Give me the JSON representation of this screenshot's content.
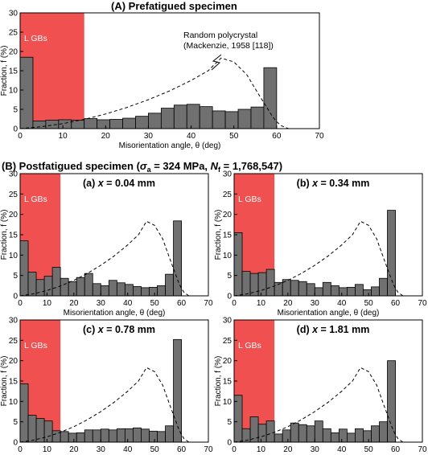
{
  "figure": {
    "panel_a_title": "(A)  Prefatigued specimen",
    "panel_b_title_prefix": "(B)  Postfatigued specimen (",
    "panel_b_sigma": "σ",
    "panel_b_sigma_sub": "a",
    "panel_b_mid": " = 324 MPa, ",
    "panel_b_n": "N",
    "panel_b_n_sub": "f",
    "panel_b_suffix": " = 1,768,547)"
  },
  "colors": {
    "lgb_band": "#f05050",
    "bar_fill": "#707070",
    "bar_stroke": "#000000",
    "curve": "#000000"
  },
  "chart_data": [
    {
      "id": "prefatigued",
      "type": "bar",
      "title": "",
      "xlabel": "Misorientation angle, θ (deg)",
      "ylabel": "Fraction, f (%)",
      "xlim": [
        0,
        70
      ],
      "ylim": [
        0,
        30
      ],
      "xticks": [
        0,
        10,
        20,
        30,
        40,
        50,
        60,
        70
      ],
      "yticks": [
        0,
        5,
        10,
        15,
        20,
        25,
        30
      ],
      "bin_width": 3,
      "lgb_range": [
        0,
        15
      ],
      "lgb_label": "L GBs",
      "annotation": [
        "Random polycrystal",
        "(Mackenzie, 1958 [118])"
      ],
      "bins": [
        0,
        3,
        6,
        9,
        12,
        15,
        18,
        21,
        24,
        27,
        30,
        33,
        36,
        39,
        42,
        45,
        48,
        51,
        54,
        57
      ],
      "values": [
        18.5,
        2.0,
        2.2,
        2.3,
        2.2,
        2.6,
        2.3,
        2.4,
        2.7,
        3.2,
        4.0,
        5.3,
        6.1,
        6.3,
        5.7,
        4.6,
        4.4,
        5.0,
        5.6,
        15.8
      ],
      "curve_name": "Random polycrystal (Mackenzie, 1958 [118])",
      "curve_x": [
        0,
        5,
        10,
        15,
        20,
        25,
        30,
        35,
        40,
        44,
        47,
        50,
        53,
        56,
        59,
        60,
        61,
        62.8
      ],
      "curve_y": [
        0,
        0.5,
        1.3,
        2.4,
        3.8,
        5.5,
        7.5,
        9.8,
        12.5,
        15.0,
        18.3,
        17.3,
        14.0,
        8.5,
        3.2,
        1.8,
        0.8,
        0
      ]
    },
    {
      "id": "x004",
      "type": "bar",
      "title": "(a) x = 0.04 mm",
      "title_prefix": "(a) ",
      "title_var": "x",
      "title_suffix": " = 0.04 mm",
      "xlabel": "Misorientation angle, θ (deg)",
      "ylabel": "Fraction, f (%)",
      "xlim": [
        0,
        70
      ],
      "ylim": [
        0,
        30
      ],
      "xticks": [
        0,
        10,
        20,
        30,
        40,
        50,
        60,
        70
      ],
      "yticks": [
        0,
        5,
        10,
        15,
        20,
        25,
        30
      ],
      "bin_width": 3,
      "lgb_range": [
        0,
        15
      ],
      "lgb_label": "L GBs",
      "bins": [
        0,
        3,
        6,
        9,
        12,
        15,
        18,
        21,
        24,
        27,
        30,
        33,
        36,
        39,
        42,
        45,
        48,
        51,
        54,
        57
      ],
      "values": [
        13.5,
        5.8,
        4.0,
        4.8,
        7.0,
        4.3,
        3.5,
        4.5,
        5.5,
        3.0,
        2.5,
        3.8,
        3.2,
        2.8,
        2.3,
        2.0,
        2.1,
        2.5,
        5.3,
        18.4
      ],
      "curve_x": [
        0,
        5,
        10,
        15,
        20,
        25,
        30,
        35,
        40,
        44,
        47,
        50,
        53,
        56,
        59,
        60,
        61,
        62.8
      ],
      "curve_y": [
        0,
        0.5,
        1.3,
        2.4,
        3.8,
        5.5,
        7.5,
        9.8,
        12.5,
        15.0,
        18.3,
        17.3,
        14.0,
        8.5,
        3.2,
        1.8,
        0.8,
        0
      ]
    },
    {
      "id": "x034",
      "type": "bar",
      "title": "(b) x = 0.34 mm",
      "title_prefix": "(b) ",
      "title_var": "x",
      "title_suffix": " = 0.34 mm",
      "xlabel": "Misorientation angle, θ (deg)",
      "ylabel": "Fraction, f (%)",
      "xlim": [
        0,
        70
      ],
      "ylim": [
        0,
        30
      ],
      "xticks": [
        0,
        10,
        20,
        30,
        40,
        50,
        60,
        70
      ],
      "yticks": [
        0,
        5,
        10,
        15,
        20,
        25,
        30
      ],
      "bin_width": 3,
      "lgb_range": [
        0,
        15
      ],
      "lgb_label": "L GBs",
      "bins": [
        0,
        3,
        6,
        9,
        12,
        15,
        18,
        21,
        24,
        27,
        30,
        33,
        36,
        39,
        42,
        45,
        48,
        51,
        54,
        57
      ],
      "values": [
        15.5,
        6.0,
        5.5,
        5.7,
        6.5,
        3.3,
        4.0,
        3.8,
        3.5,
        3.0,
        2.0,
        3.3,
        2.5,
        2.0,
        2.1,
        2.8,
        1.5,
        2.2,
        4.3,
        21.0
      ],
      "curve_x": [
        0,
        5,
        10,
        15,
        20,
        25,
        30,
        35,
        40,
        44,
        47,
        50,
        53,
        56,
        59,
        60,
        61,
        62.8
      ],
      "curve_y": [
        0,
        0.5,
        1.3,
        2.4,
        3.8,
        5.5,
        7.5,
        9.8,
        12.5,
        15.0,
        18.3,
        17.3,
        14.0,
        8.5,
        3.2,
        1.8,
        0.8,
        0
      ]
    },
    {
      "id": "x078",
      "type": "bar",
      "title": "(c) x = 0.78 mm",
      "title_prefix": "(c) ",
      "title_var": "x",
      "title_suffix": " = 0.78 mm",
      "xlabel": "Misorientation angle, θ (deg)",
      "ylabel": "Fraction, f (%)",
      "xlim": [
        0,
        70
      ],
      "ylim": [
        0,
        30
      ],
      "xticks": [
        0,
        10,
        20,
        30,
        40,
        50,
        60,
        70
      ],
      "yticks": [
        0,
        5,
        10,
        15,
        20,
        25,
        30
      ],
      "bin_width": 3,
      "lgb_range": [
        0,
        15
      ],
      "lgb_label": "L GBs",
      "bins": [
        0,
        3,
        6,
        9,
        12,
        15,
        18,
        21,
        24,
        27,
        30,
        33,
        36,
        39,
        42,
        45,
        48,
        51,
        54,
        57
      ],
      "values": [
        14.3,
        6.6,
        5.8,
        5.2,
        2.8,
        2.6,
        2.2,
        2.3,
        3.0,
        3.0,
        3.2,
        3.0,
        3.3,
        3.3,
        3.5,
        3.2,
        2.7,
        2.6,
        4.0,
        25.2
      ],
      "curve_x": [
        0,
        5,
        10,
        15,
        20,
        25,
        30,
        35,
        40,
        44,
        47,
        50,
        53,
        56,
        59,
        60,
        61,
        62.8
      ],
      "curve_y": [
        0,
        0.5,
        1.3,
        2.4,
        3.8,
        5.5,
        7.5,
        9.8,
        12.5,
        15.0,
        18.3,
        17.3,
        14.0,
        8.5,
        3.2,
        1.8,
        0.8,
        0
      ]
    },
    {
      "id": "x181",
      "type": "bar",
      "title": "(d) x = 1.81 mm",
      "title_prefix": "(d) ",
      "title_var": "x",
      "title_suffix": " = 1.81 mm",
      "xlabel": "Misorientation angle, θ (deg)",
      "ylabel": "Fraction, f (%)",
      "xlim": [
        0,
        70
      ],
      "ylim": [
        0,
        30
      ],
      "xticks": [
        0,
        10,
        20,
        30,
        40,
        50,
        60,
        70
      ],
      "yticks": [
        0,
        5,
        10,
        15,
        20,
        25,
        30
      ],
      "bin_width": 3,
      "lgb_range": [
        0,
        15
      ],
      "lgb_label": "L GBs",
      "bins": [
        0,
        3,
        6,
        9,
        12,
        15,
        18,
        21,
        24,
        27,
        30,
        33,
        36,
        39,
        42,
        45,
        48,
        51,
        54,
        57
      ],
      "values": [
        11.5,
        3.3,
        6.2,
        4.4,
        5.2,
        2.0,
        3.0,
        4.7,
        4.3,
        4.0,
        5.2,
        3.3,
        2.3,
        3.2,
        2.2,
        3.3,
        2.8,
        4.0,
        5.0,
        20.0
      ],
      "curve_x": [
        0,
        5,
        10,
        15,
        20,
        25,
        30,
        35,
        40,
        44,
        47,
        50,
        53,
        56,
        59,
        60,
        61,
        62.8
      ],
      "curve_y": [
        0,
        0.5,
        1.3,
        2.4,
        3.8,
        5.5,
        7.5,
        9.8,
        12.5,
        15.0,
        18.3,
        17.3,
        14.0,
        8.5,
        3.2,
        1.8,
        0.8,
        0
      ]
    }
  ]
}
